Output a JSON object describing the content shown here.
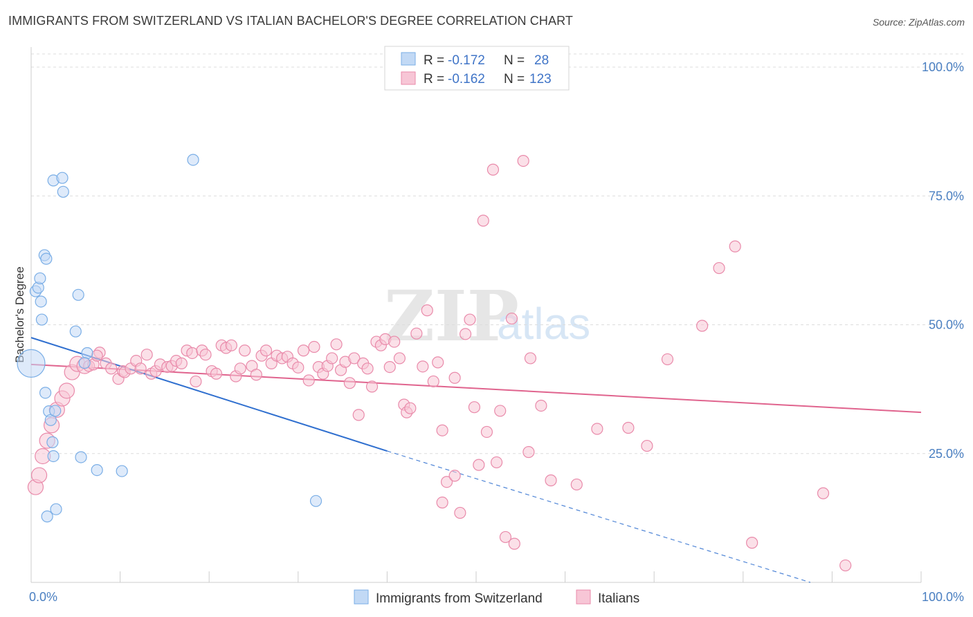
{
  "title": "IMMIGRANTS FROM SWITZERLAND VS ITALIAN BACHELOR'S DEGREE CORRELATION CHART",
  "source": "Source: ZipAtlas.com",
  "watermark": {
    "zip": "ZIP",
    "atlas": "atlas"
  },
  "colors": {
    "blue": "#7aaee6",
    "blue_fill": "#c2d9f5",
    "blue_line": "#2f6fcf",
    "pink": "#e98aaa",
    "pink_fill": "#f7c6d6",
    "pink_line": "#e0648e",
    "accent_text": "#3f74c7"
  },
  "legend": {
    "rows": [
      {
        "r_label": "R =",
        "r_value": "-0.172",
        "n_label": "N =",
        "n_value": "28"
      },
      {
        "r_label": "R =",
        "r_value": "-0.162",
        "n_label": "N =",
        "n_value": "123"
      }
    ]
  },
  "bottom_legend": [
    "Immigrants from Switzerland",
    "Italians"
  ],
  "chart_data": {
    "type": "scatter",
    "title": "IMMIGRANTS FROM SWITZERLAND VS ITALIAN BACHELOR'S DEGREE CORRELATION CHART",
    "xlabel": "",
    "ylabel": "Bachelor's Degree",
    "xlim": [
      0,
      100
    ],
    "ylim": [
      0,
      100
    ],
    "x_tick_labels": [
      "0.0%",
      "100.0%"
    ],
    "y_tick_labels": [
      "25.0%",
      "50.0%",
      "75.0%",
      "100.0%"
    ],
    "y_ticks": [
      25,
      50,
      75,
      100
    ],
    "series": [
      {
        "name": "Immigrants from Switzerland",
        "R": -0.172,
        "N": 28,
        "trend": {
          "x0": 0,
          "y0": 47.5,
          "x1": 40,
          "y1": 25.5,
          "dashed_to_x": 100,
          "dashed_to_y": -2
        },
        "points": [
          [
            0,
            42.5,
            3
          ],
          [
            0.5,
            56.5,
            1
          ],
          [
            0.8,
            57.2,
            1
          ],
          [
            1.2,
            51,
            1
          ],
          [
            1.0,
            59,
            1
          ],
          [
            1.1,
            54.5,
            1
          ],
          [
            1.5,
            63.5,
            1
          ],
          [
            1.7,
            62.8,
            1
          ],
          [
            1.6,
            36.8,
            1
          ],
          [
            2.0,
            33.2,
            1
          ],
          [
            2.2,
            31.5,
            1
          ],
          [
            2.4,
            27.2,
            1
          ],
          [
            2.5,
            24.5,
            1
          ],
          [
            2.5,
            78,
            1
          ],
          [
            3.5,
            78.5,
            1
          ],
          [
            3.6,
            75.8,
            1
          ],
          [
            2.7,
            33.3,
            1
          ],
          [
            1.8,
            12.8,
            1
          ],
          [
            2.8,
            14.2,
            1
          ],
          [
            5,
            48.7,
            1
          ],
          [
            5.3,
            55.8,
            1
          ],
          [
            5.6,
            24.3,
            1
          ],
          [
            6.3,
            44.5,
            1
          ],
          [
            7.4,
            21.8,
            1
          ],
          [
            10.2,
            21.6,
            1
          ],
          [
            18.2,
            82,
            1
          ],
          [
            32,
            15.8,
            1
          ],
          [
            6.0,
            42.6,
            1
          ]
        ]
      },
      {
        "name": "Italians",
        "R": -0.162,
        "N": 123,
        "trend": {
          "x0": 0,
          "y0": 42.3,
          "x1": 100,
          "y1": 33
        },
        "points": [
          [
            0.5,
            18.5,
            2
          ],
          [
            0.9,
            20.8,
            2
          ],
          [
            1.3,
            24.5,
            2
          ],
          [
            1.8,
            27.5,
            2
          ],
          [
            2.3,
            30.5,
            2
          ],
          [
            2.9,
            33.5,
            2
          ],
          [
            3.5,
            35.7,
            2
          ],
          [
            4.0,
            37.2,
            2
          ],
          [
            4.6,
            40.8,
            2
          ],
          [
            5.2,
            42.4,
            2
          ],
          [
            6.0,
            42.0,
            2
          ],
          [
            6.5,
            42.0,
            1
          ],
          [
            7.0,
            42.3,
            1
          ],
          [
            7.7,
            44.6,
            1
          ],
          [
            7.4,
            44.0,
            1
          ],
          [
            8.4,
            42.5,
            1
          ],
          [
            9.0,
            41.5,
            1
          ],
          [
            9.8,
            39.5,
            1
          ],
          [
            10.3,
            41.0,
            1
          ],
          [
            10.5,
            40.8,
            1
          ],
          [
            11.2,
            41.5,
            1
          ],
          [
            11.8,
            43.0,
            1
          ],
          [
            12.3,
            41.5,
            1
          ],
          [
            13.0,
            44.2,
            1
          ],
          [
            13.5,
            40.5,
            1
          ],
          [
            14.0,
            41.0,
            1
          ],
          [
            14.5,
            42.3,
            1
          ],
          [
            15.3,
            41.8,
            1
          ],
          [
            15.8,
            42.0,
            1
          ],
          [
            16.3,
            43.0,
            1
          ],
          [
            16.9,
            42.5,
            1
          ],
          [
            17.5,
            45.0,
            1
          ],
          [
            18.1,
            44.5,
            1
          ],
          [
            18.5,
            39.0,
            1
          ],
          [
            19.2,
            45.0,
            1
          ],
          [
            19.6,
            44.2,
            1
          ],
          [
            20.3,
            41.0,
            1
          ],
          [
            20.8,
            40.5,
            1
          ],
          [
            21.4,
            46.0,
            1
          ],
          [
            21.9,
            45.5,
            1
          ],
          [
            22.5,
            46.0,
            1
          ],
          [
            23.0,
            40.0,
            1
          ],
          [
            23.5,
            41.5,
            1
          ],
          [
            24.0,
            45.0,
            1
          ],
          [
            24.8,
            42.0,
            1
          ],
          [
            25.3,
            40.3,
            1
          ],
          [
            25.9,
            44.0,
            1
          ],
          [
            26.4,
            45.0,
            1
          ],
          [
            27.0,
            42.5,
            1
          ],
          [
            27.6,
            44.0,
            1
          ],
          [
            28.2,
            43.5,
            1
          ],
          [
            28.8,
            43.8,
            1
          ],
          [
            29.4,
            42.5,
            1
          ],
          [
            30.0,
            41.7,
            1
          ],
          [
            30.6,
            45.0,
            1
          ],
          [
            31.2,
            39.2,
            1
          ],
          [
            31.8,
            45.7,
            1
          ],
          [
            32.3,
            41.8,
            1
          ],
          [
            32.8,
            40.5,
            1
          ],
          [
            33.3,
            42.0,
            1
          ],
          [
            33.8,
            43.5,
            1
          ],
          [
            34.3,
            46.2,
            1
          ],
          [
            34.8,
            41.2,
            1
          ],
          [
            35.3,
            42.8,
            1
          ],
          [
            35.8,
            38.7,
            1
          ],
          [
            36.3,
            43.5,
            1
          ],
          [
            36.8,
            32.5,
            1
          ],
          [
            37.3,
            42.5,
            1
          ],
          [
            37.8,
            41.5,
            1
          ],
          [
            38.3,
            38.0,
            1
          ],
          [
            38.8,
            46.7,
            1
          ],
          [
            39.3,
            46.0,
            1
          ],
          [
            39.8,
            47.2,
            1
          ],
          [
            40.3,
            41.8,
            1
          ],
          [
            40.8,
            46.7,
            1
          ],
          [
            41.4,
            43.5,
            1
          ],
          [
            41.9,
            34.5,
            1
          ],
          [
            42.2,
            33.0,
            1
          ],
          [
            42.6,
            33.8,
            1
          ],
          [
            43.3,
            48.3,
            1
          ],
          [
            44.0,
            41.9,
            1
          ],
          [
            44.5,
            52.8,
            1
          ],
          [
            45.2,
            39.0,
            1
          ],
          [
            45.7,
            42.7,
            1
          ],
          [
            46.2,
            29.5,
            1
          ],
          [
            46.7,
            19.5,
            1
          ],
          [
            46.2,
            15.5,
            1
          ],
          [
            47.6,
            39.7,
            1
          ],
          [
            47.6,
            20.7,
            1
          ],
          [
            48.2,
            13.5,
            1
          ],
          [
            48.8,
            48.2,
            1
          ],
          [
            49.3,
            51.0,
            1
          ],
          [
            49.8,
            34.0,
            1
          ],
          [
            50.3,
            22.8,
            1
          ],
          [
            50.8,
            70.2,
            1
          ],
          [
            51.2,
            29.2,
            1
          ],
          [
            51.9,
            80.1,
            1
          ],
          [
            52.3,
            23.3,
            1
          ],
          [
            52.7,
            33.3,
            1
          ],
          [
            53.3,
            8.8,
            1
          ],
          [
            54.0,
            51.2,
            1
          ],
          [
            54.3,
            7.5,
            1
          ],
          [
            55.3,
            81.8,
            1
          ],
          [
            56.1,
            43.5,
            1
          ],
          [
            55.9,
            25.3,
            1
          ],
          [
            57.3,
            34.3,
            1
          ],
          [
            58.4,
            19.8,
            1
          ],
          [
            61.3,
            19.0,
            1
          ],
          [
            63.6,
            29.8,
            1
          ],
          [
            67.1,
            30.0,
            1
          ],
          [
            69.2,
            26.5,
            1
          ],
          [
            71.5,
            43.3,
            1
          ],
          [
            75.4,
            49.8,
            1
          ],
          [
            77.3,
            61.0,
            1
          ],
          [
            79.1,
            65.2,
            1
          ],
          [
            81.0,
            7.7,
            1
          ],
          [
            89.0,
            17.3,
            1
          ],
          [
            91.5,
            3.3,
            1
          ]
        ]
      }
    ]
  }
}
